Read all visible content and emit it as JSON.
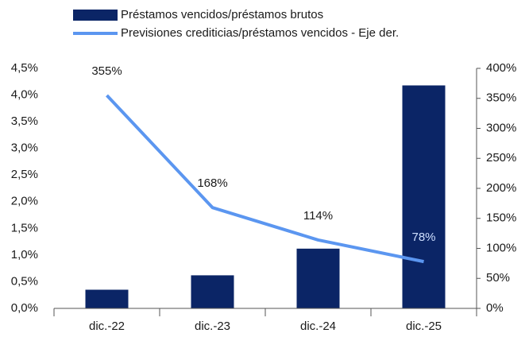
{
  "chart_data": {
    "type": "bar_line",
    "categories": [
      "dic.-22",
      "dic.-23",
      "dic.-24",
      "dic.-25"
    ],
    "series": [
      {
        "name": "Préstamos vencidos/préstamos brutos",
        "type": "bar",
        "color": "#0b2566",
        "axis": "y",
        "values": [
          0.35,
          0.62,
          1.12,
          4.18
        ]
      },
      {
        "name": "Previsiones crediticias/préstamos vencidos - Eje der.",
        "type": "line",
        "color": "#5b96f0",
        "axis": "y2",
        "values": [
          355,
          168,
          114,
          78
        ],
        "value_labels": [
          "355%",
          "168%",
          "114%",
          "78%"
        ]
      }
    ],
    "ylim": [
      0,
      4.5
    ],
    "yticks": [
      {
        "value": 0,
        "label": "0,0%"
      },
      {
        "value": 0.5,
        "label": "0,5%"
      },
      {
        "value": 1,
        "label": "1,0%"
      },
      {
        "value": 1.5,
        "label": "1,5%"
      },
      {
        "value": 2,
        "label": "2,0%"
      },
      {
        "value": 2.5,
        "label": "2,5%"
      },
      {
        "value": 3,
        "label": "3,0%"
      },
      {
        "value": 3.5,
        "label": "3,5%"
      },
      {
        "value": 4,
        "label": "4,0%"
      },
      {
        "value": 4.5,
        "label": "4,5%"
      }
    ],
    "y2lim": [
      0,
      400
    ],
    "y2ticks": [
      {
        "value": 0,
        "label": "0%"
      },
      {
        "value": 50,
        "label": "50%"
      },
      {
        "value": 100,
        "label": "100%"
      },
      {
        "value": 150,
        "label": "150%"
      },
      {
        "value": 200,
        "label": "200%"
      },
      {
        "value": 250,
        "label": "250%"
      },
      {
        "value": 300,
        "label": "300%"
      },
      {
        "value": 350,
        "label": "350%"
      },
      {
        "value": 400,
        "label": "400%"
      }
    ],
    "legend": "top"
  }
}
